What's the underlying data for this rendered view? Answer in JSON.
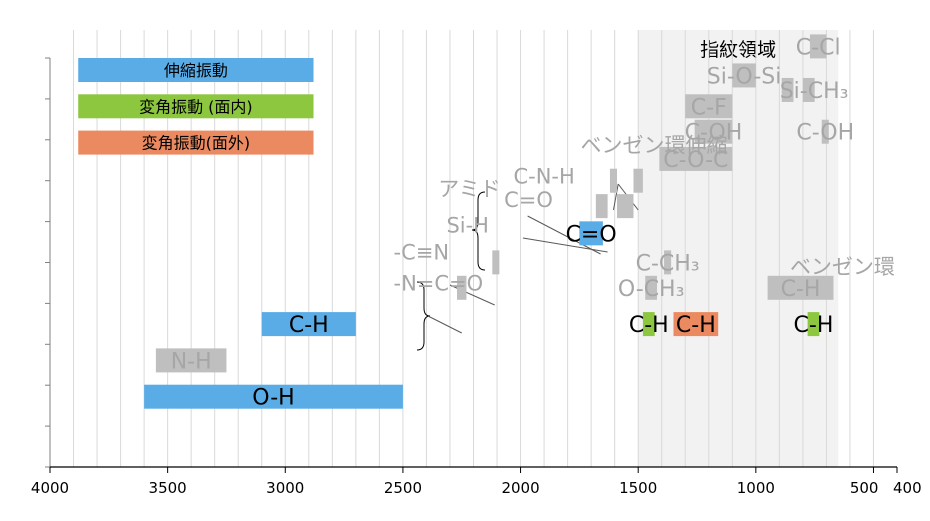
{
  "chart_data": {
    "type": "bar",
    "orientation": "horizontal",
    "title": "",
    "xlabel": "",
    "ylabel": "",
    "xlim": [
      4000,
      400
    ],
    "x_reversed": true,
    "grid": "vertical minor every 100",
    "x_ticks": [
      {
        "value": 4000,
        "label": "4000"
      },
      {
        "value": 3500,
        "label": "3500"
      },
      {
        "value": 3000,
        "label": "3000"
      },
      {
        "value": 2500,
        "label": "2500"
      },
      {
        "value": 2000,
        "label": "2000"
      },
      {
        "value": 1500,
        "label": "1500"
      },
      {
        "value": 1000,
        "label": "1000"
      },
      {
        "value": 500,
        "label": "500"
      },
      {
        "value": 400,
        "label": "400"
      }
    ],
    "region": {
      "label": "指紋領域",
      "from": 1500,
      "to": 650,
      "color": "#f2f2f2"
    },
    "legend": [
      {
        "label": "伸縮振動",
        "color": "#5aace6",
        "from": 3880,
        "to": 2880,
        "row": 1
      },
      {
        "label": "変角振動 (面内)",
        "color": "#8dc63f",
        "from": 3880,
        "to": 2880,
        "row": 2
      },
      {
        "label": "変角振動(面外)",
        "color": "#eb8a60",
        "from": 3880,
        "to": 2880,
        "row": 3
      }
    ],
    "bars": [
      {
        "label": "O-H",
        "from": 3600,
        "to": 2500,
        "row": 10,
        "color": "#5aace6",
        "text_color": "#000000",
        "label_pos": "center"
      },
      {
        "label": "N-H",
        "from": 3550,
        "to": 3250,
        "row": 9,
        "color": "#bfbfbf",
        "text_color": "#a6a6a6",
        "label_pos": "center"
      },
      {
        "label": "C-H",
        "from": 3100,
        "to": 2700,
        "row": 8,
        "color": "#5aace6",
        "text_color": "#000000",
        "label_pos": "center"
      },
      {
        "label": "C=O",
        "from": 1750,
        "to": 1650,
        "row": 5.5,
        "color": "#5aace6",
        "text_color": "#000000",
        "label_pos": "center"
      },
      {
        "label": "C-H",
        "from": 1480,
        "to": 1430,
        "row": 8,
        "color": "#8dc63f",
        "text_color": "#000000",
        "label_pos": "center"
      },
      {
        "label": "C-H",
        "from": 1350,
        "to": 1160,
        "row": 8,
        "color": "#eb8a60",
        "text_color": "#000000",
        "label_pos": "center"
      },
      {
        "label": "C-H",
        "from": 780,
        "to": 730,
        "row": 8,
        "color": "#8dc63f",
        "text_color": "#000000",
        "label_pos": "center"
      },
      {
        "label": "C-Cl",
        "from": 770,
        "to": 700,
        "row": 0.35,
        "color": "#bfbfbf",
        "text_color": "#a6a6a6",
        "label_pos": "center"
      },
      {
        "label": "Si-O-Si",
        "from": 1100,
        "to": 1000,
        "row": 1.15,
        "color": "#bfbfbf",
        "text_color": "#a6a6a6",
        "label_pos": "center"
      },
      {
        "label": "Si-CH₃",
        "from": 890,
        "to": 840,
        "row": 1.55,
        "color": "#bfbfbf",
        "text_color": "#a6a6a6",
        "label_pos": "left"
      },
      {
        "label": "",
        "from": 800,
        "to": 750,
        "row": 1.55,
        "color": "#bfbfbf",
        "text_color": "#a6a6a6",
        "label_pos": "none"
      },
      {
        "label": "C-F",
        "from": 1300,
        "to": 1100,
        "row": 2.0,
        "color": "#bfbfbf",
        "text_color": "#a6a6a6",
        "label_pos": "center"
      },
      {
        "label": "C-OH",
        "from": 1260,
        "to": 1100,
        "row": 2.7,
        "color": "#bfbfbf",
        "text_color": "#a6a6a6",
        "label_pos": "center"
      },
      {
        "label": "C-OH",
        "from": 720,
        "to": 690,
        "row": 2.7,
        "color": "#bfbfbf",
        "text_color": "#a6a6a6",
        "label_pos": "center"
      },
      {
        "label": "C-O-C",
        "from": 1410,
        "to": 1100,
        "row": 3.45,
        "color": "#bfbfbf",
        "text_color": "#a6a6a6",
        "label_pos": "center"
      },
      {
        "label": "",
        "from": 1620,
        "to": 1590,
        "row": 4.05,
        "color": "#bfbfbf",
        "text_color": "#a6a6a6",
        "label_pos": "none"
      },
      {
        "label": "",
        "from": 1520,
        "to": 1480,
        "row": 4.05,
        "color": "#bfbfbf",
        "text_color": "#a6a6a6",
        "label_pos": "none"
      },
      {
        "label": "",
        "from": 1680,
        "to": 1630,
        "row": 4.75,
        "color": "#bfbfbf",
        "text_color": "#a6a6a6",
        "label_pos": "none"
      },
      {
        "label": "",
        "from": 1590,
        "to": 1520,
        "row": 4.75,
        "color": "#bfbfbf",
        "text_color": "#a6a6a6",
        "label_pos": "none"
      },
      {
        "label": "",
        "from": 2270,
        "to": 2230,
        "row": 7.0,
        "color": "#bfbfbf",
        "text_color": "#a6a6a6",
        "label_pos": "none"
      },
      {
        "label": "",
        "from": 2120,
        "to": 2090,
        "row": 6.3,
        "color": "#bfbfbf",
        "text_color": "#a6a6a6",
        "label_pos": "none"
      },
      {
        "label": "C-CH₃",
        "from": 1390,
        "to": 1360,
        "row": 6.3,
        "color": "#bfbfbf",
        "text_color": "#a6a6a6",
        "label_pos": "center"
      },
      {
        "label": "O-CH₃",
        "from": 1470,
        "to": 1420,
        "row": 7.0,
        "color": "#bfbfbf",
        "text_color": "#a6a6a6",
        "label_pos": "center"
      },
      {
        "label": "C-H",
        "from": 950,
        "to": 670,
        "row": 7.0,
        "color": "#bfbfbf",
        "text_color": "#a6a6a6",
        "label_pos": "center"
      }
    ],
    "annotations": [
      {
        "text": "ベンゼン環伸縮",
        "x": 1745,
        "row": 3.05
      },
      {
        "text": "アミド",
        "x": 2350,
        "row": 4.25
      },
      {
        "text": "C-N-H",
        "x": 2030,
        "row": 3.9
      },
      {
        "text": "C=O",
        "x": 2070,
        "row": 4.55
      },
      {
        "text": "Si-H",
        "x": 2315,
        "row": 5.25
      },
      {
        "text": "-C≡N",
        "x": 2540,
        "row": 6.0
      },
      {
        "text": "-N=C=O",
        "x": 2540,
        "row": 6.85
      },
      {
        "text": "ベンゼン環",
        "x": 855,
        "row": 6.4
      }
    ]
  }
}
